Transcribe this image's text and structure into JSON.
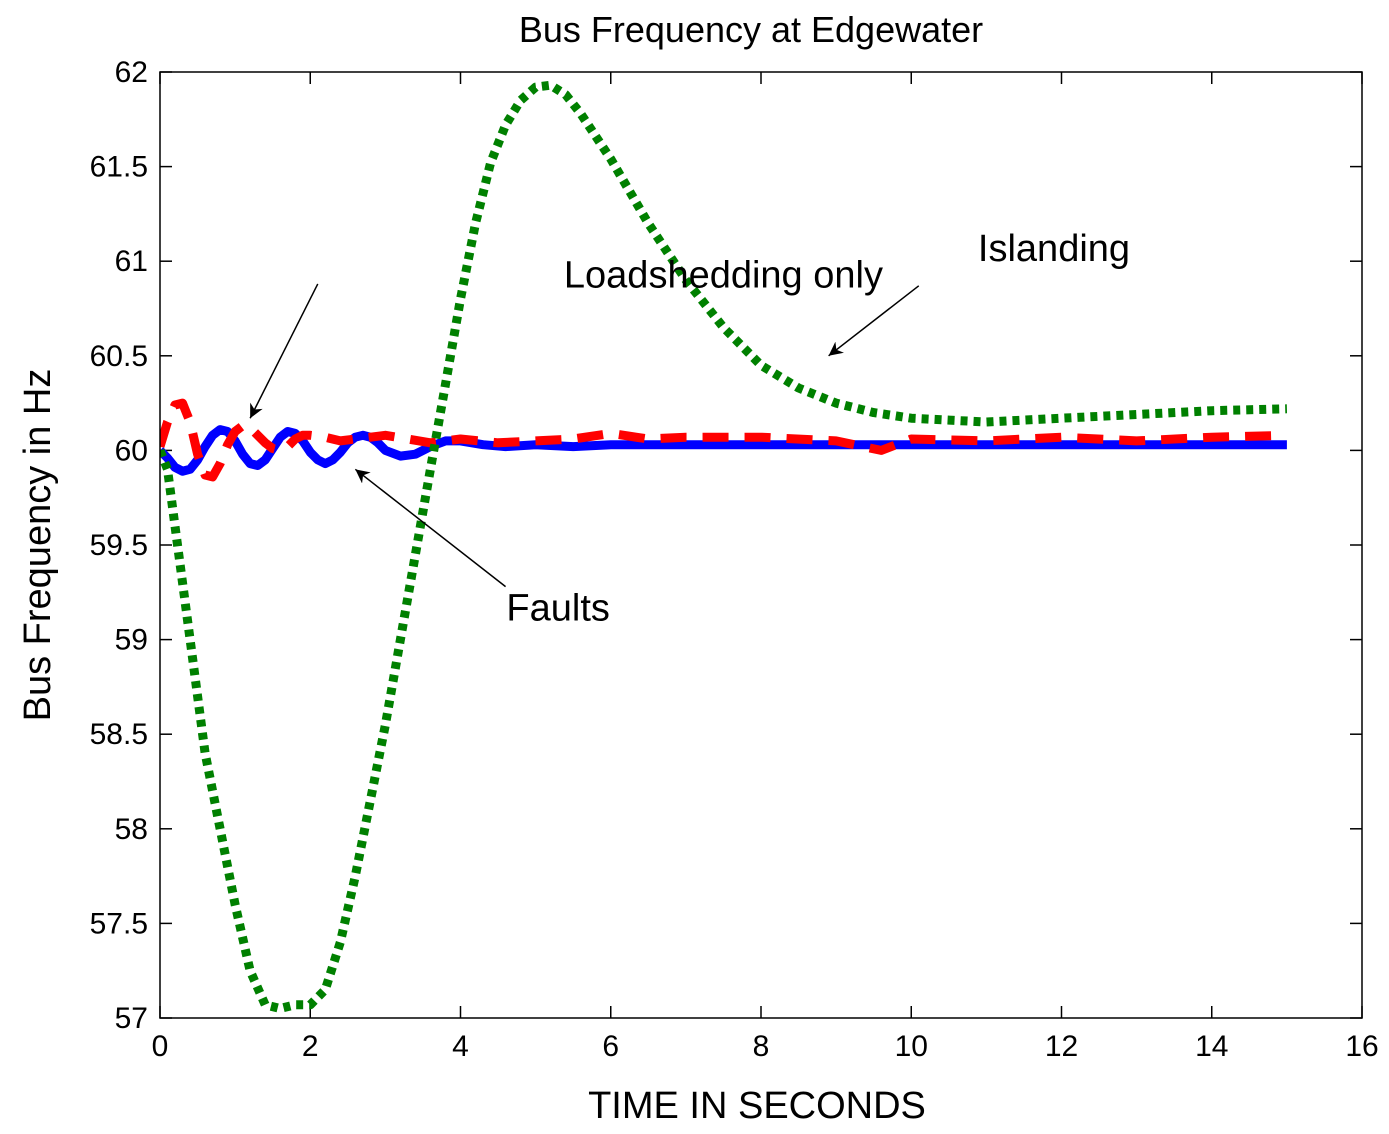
{
  "chart_data": {
    "type": "line",
    "title": "Bus Frequency at Edgewater",
    "xlabel": "TIME IN SECONDS",
    "ylabel": "Bus Frequency in Hz",
    "xlim": [
      0,
      16
    ],
    "ylim": [
      57,
      62
    ],
    "x_ticks": [
      "0",
      "2",
      "4",
      "6",
      "8",
      "10",
      "12",
      "14",
      "16"
    ],
    "y_ticks": [
      "57",
      "57.5",
      "58",
      "58.5",
      "59",
      "59.5",
      "60",
      "60.5",
      "61",
      "61.5",
      "62"
    ],
    "grid": false,
    "legend": "none",
    "series": [
      {
        "key": "faults",
        "color": "#0000ff",
        "dash": "solid",
        "x": [
          0,
          0.1,
          0.2,
          0.3,
          0.4,
          0.5,
          0.6,
          0.7,
          0.8,
          0.9,
          1.0,
          1.1,
          1.2,
          1.3,
          1.4,
          1.5,
          1.6,
          1.7,
          1.8,
          1.9,
          2.0,
          2.1,
          2.2,
          2.3,
          2.4,
          2.5,
          2.6,
          2.7,
          2.8,
          2.9,
          3.0,
          3.2,
          3.4,
          3.6,
          3.8,
          4.0,
          4.3,
          4.6,
          5.0,
          5.5,
          6.0,
          7.0,
          8.0,
          9.0,
          10.0,
          11.0,
          12.0,
          13.0,
          14.0,
          15.0
        ],
        "y": [
          60.0,
          59.96,
          59.91,
          59.89,
          59.9,
          59.95,
          60.02,
          60.08,
          60.11,
          60.1,
          60.05,
          59.98,
          59.93,
          59.92,
          59.95,
          60.01,
          60.07,
          60.1,
          60.09,
          60.05,
          59.99,
          59.95,
          59.93,
          59.95,
          59.99,
          60.04,
          60.07,
          60.08,
          60.07,
          60.04,
          60.0,
          59.97,
          59.98,
          60.02,
          60.05,
          60.05,
          60.03,
          60.02,
          60.03,
          60.02,
          60.03,
          60.03,
          60.03,
          60.03,
          60.03,
          60.03,
          60.03,
          60.03,
          60.03,
          60.03
        ]
      },
      {
        "key": "loadshedding",
        "color": "#ff0000",
        "dash": "dashed",
        "x": [
          0,
          0.1,
          0.2,
          0.3,
          0.4,
          0.5,
          0.6,
          0.7,
          0.8,
          0.9,
          1.0,
          1.1,
          1.2,
          1.3,
          1.4,
          1.5,
          1.6,
          1.7,
          1.8,
          1.9,
          2.0,
          2.2,
          2.4,
          2.6,
          2.8,
          3.0,
          3.3,
          3.6,
          4.0,
          4.5,
          5.0,
          5.5,
          6.0,
          6.5,
          7.0,
          8.0,
          9.0,
          9.6,
          10.0,
          11.0,
          12.0,
          13.0,
          14.0,
          15.0
        ],
        "y": [
          60.02,
          60.15,
          60.24,
          60.25,
          60.15,
          59.98,
          59.87,
          59.86,
          59.93,
          60.03,
          60.1,
          60.13,
          60.12,
          60.08,
          60.04,
          60.01,
          60.0,
          60.02,
          60.06,
          60.08,
          60.08,
          60.07,
          60.05,
          60.06,
          60.07,
          60.08,
          60.06,
          60.04,
          60.06,
          60.04,
          60.05,
          60.06,
          60.09,
          60.06,
          60.07,
          60.07,
          60.05,
          60.0,
          60.06,
          60.05,
          60.07,
          60.05,
          60.07,
          60.08
        ]
      },
      {
        "key": "islanding",
        "color": "#008000",
        "dash": "dotted",
        "x": [
          0,
          0.1,
          0.2,
          0.4,
          0.6,
          0.8,
          1.0,
          1.2,
          1.4,
          1.6,
          1.8,
          2.0,
          2.2,
          2.4,
          2.6,
          2.8,
          3.0,
          3.2,
          3.4,
          3.6,
          3.8,
          4.0,
          4.2,
          4.4,
          4.6,
          4.8,
          5.0,
          5.2,
          5.4,
          5.6,
          5.8,
          6.0,
          6.5,
          7.0,
          7.5,
          8.0,
          8.5,
          9.0,
          9.5,
          10.0,
          10.5,
          11.0,
          11.5,
          12.0,
          13.0,
          14.0,
          15.0
        ],
        "y": [
          60.0,
          59.9,
          59.6,
          59.0,
          58.4,
          58.0,
          57.6,
          57.25,
          57.07,
          57.05,
          57.07,
          57.07,
          57.15,
          57.4,
          57.75,
          58.15,
          58.55,
          59.0,
          59.45,
          59.9,
          60.35,
          60.8,
          61.2,
          61.52,
          61.72,
          61.85,
          61.92,
          61.93,
          61.88,
          61.78,
          61.66,
          61.54,
          61.2,
          60.9,
          60.65,
          60.45,
          60.33,
          60.25,
          60.2,
          60.17,
          60.16,
          60.15,
          60.16,
          60.17,
          60.19,
          60.21,
          60.22
        ]
      }
    ],
    "annotations": [
      {
        "text": "Loadshedding only",
        "x": 7.5,
        "y": 60.86,
        "arrow_from": [
          2.1,
          60.88
        ],
        "arrow_to": [
          1.2,
          60.17
        ]
      },
      {
        "text": "Islanding",
        "x": 11.9,
        "y": 61.0,
        "arrow_from": [
          10.1,
          60.87
        ],
        "arrow_to": [
          8.9,
          60.5
        ]
      },
      {
        "text": "Faults",
        "x": 5.3,
        "y": 59.1,
        "arrow_from": [
          4.6,
          59.28
        ],
        "arrow_to": [
          2.6,
          59.9
        ]
      }
    ]
  }
}
